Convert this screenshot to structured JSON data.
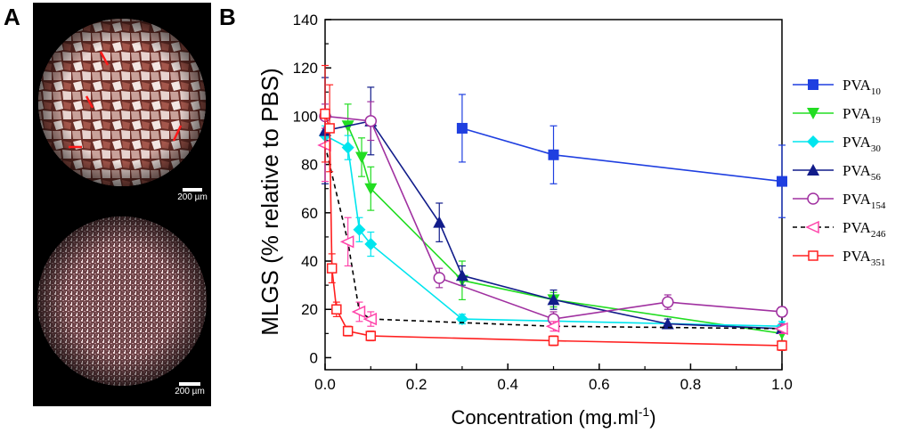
{
  "panels": {
    "a_label": "A",
    "b_label": "B",
    "scale_top": "200 µm",
    "scale_bottom": "200 µm"
  },
  "chart_data": {
    "type": "line",
    "title": "",
    "xlabel": "Concentration (mg.ml",
    "xlabel_sup": "-1",
    "xlabel_end": ")",
    "ylabel": "MLGS (% relative to PBS)",
    "xlim": [
      0.0,
      1.0
    ],
    "ylim": [
      -5,
      140
    ],
    "xticks": [
      0.0,
      0.2,
      0.4,
      0.6,
      0.8,
      1.0
    ],
    "xtick_labels": [
      "0.0",
      "0.2",
      "0.4",
      "0.6",
      "0.8",
      "1.0"
    ],
    "yticks": [
      0,
      20,
      40,
      60,
      80,
      100,
      120,
      140
    ],
    "ytick_labels": [
      "0",
      "20",
      "40",
      "60",
      "80",
      "100",
      "120",
      "140"
    ],
    "legend_position": "right",
    "series": [
      {
        "name": "PVA",
        "sub": "10",
        "color": "#1f3fe0",
        "marker": "square-filled",
        "dash": false,
        "x": [
          0.3,
          0.5,
          1.0
        ],
        "y": [
          95,
          84,
          73
        ],
        "err": [
          14,
          12,
          15
        ]
      },
      {
        "name": "PVA",
        "sub": "19",
        "color": "#22dd22",
        "marker": "tri-down-filled",
        "dash": false,
        "x": [
          0.05,
          0.08,
          0.1,
          0.3,
          0.5,
          1.0
        ],
        "y": [
          96,
          83,
          70,
          32,
          24,
          10
        ],
        "err": [
          9,
          8,
          9,
          8,
          3,
          3
        ]
      },
      {
        "name": "PVA",
        "sub": "30",
        "color": "#00e5ee",
        "marker": "diamond-filled",
        "dash": false,
        "x": [
          0.0,
          0.05,
          0.075,
          0.1,
          0.3,
          1.0
        ],
        "y": [
          92,
          87,
          53,
          47,
          16,
          13
        ],
        "err": [
          4,
          5,
          5,
          5,
          2,
          2
        ]
      },
      {
        "name": "PVA",
        "sub": "56",
        "color": "#111c8a",
        "marker": "tri-up-filled",
        "dash": false,
        "x": [
          0.0,
          0.1,
          0.25,
          0.3,
          0.5,
          0.75,
          1.0
        ],
        "y": [
          94,
          98,
          56,
          34,
          24,
          14,
          12
        ],
        "err": [
          22,
          14,
          8,
          4,
          4,
          2,
          2
        ]
      },
      {
        "name": "PVA",
        "sub": "154",
        "color": "#a030a0",
        "marker": "circle-open",
        "dash": false,
        "x": [
          0.0,
          0.1,
          0.25,
          0.5,
          0.75,
          1.0
        ],
        "y": [
          100,
          98,
          33,
          16,
          23,
          19
        ],
        "err": [
          5,
          8,
          4,
          3,
          3,
          2
        ]
      },
      {
        "name": "PVA",
        "sub": "246",
        "color": "#000000",
        "marker": "tri-left-open",
        "marker_color": "#ff44aa",
        "dash": true,
        "x": [
          0.0,
          0.05,
          0.075,
          0.1,
          0.5,
          1.0
        ],
        "y": [
          88,
          48,
          19,
          16,
          13,
          12
        ],
        "err": [
          15,
          10,
          4,
          3,
          2,
          2
        ]
      },
      {
        "name": "PVA",
        "sub": "351",
        "color": "#ff2020",
        "marker": "square-open",
        "dash": false,
        "x": [
          0.0,
          0.01,
          0.015,
          0.025,
          0.05,
          0.1,
          0.5,
          1.0
        ],
        "y": [
          101,
          95,
          37,
          20,
          11,
          9,
          7,
          5
        ],
        "err": [
          20,
          18,
          6,
          3,
          2,
          2,
          2,
          2
        ]
      }
    ]
  }
}
